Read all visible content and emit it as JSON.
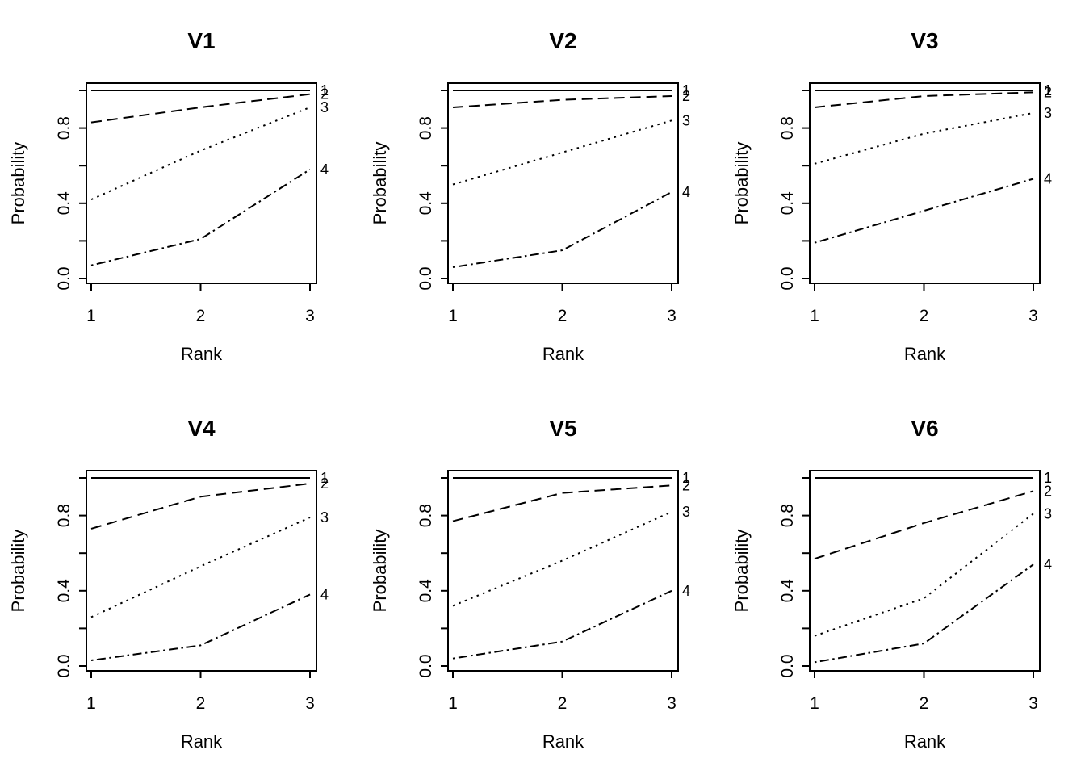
{
  "figure": {
    "background": "#ffffff",
    "ink_color": "#000000",
    "grid": {
      "rows": 2,
      "cols": 3
    }
  },
  "chart_data": [
    {
      "type": "line",
      "title": "V1",
      "xlabel": "Rank",
      "ylabel": "Probability",
      "xlim": [
        0.92,
        3.08
      ],
      "ylim": [
        -0.04,
        1.04
      ],
      "x": [
        1,
        2,
        3
      ],
      "x_ticks": [
        {
          "value": 1,
          "label": "1"
        },
        {
          "value": 2,
          "label": "2"
        },
        {
          "value": 3,
          "label": "3"
        }
      ],
      "y_tick_values": [
        0.0,
        0.2,
        0.4,
        0.6,
        0.8,
        1.0
      ],
      "y_labeled_ticks": [
        {
          "value": 0.0,
          "label": "0.0"
        },
        {
          "value": 0.4,
          "label": "0.4"
        },
        {
          "value": 0.8,
          "label": "0.8"
        }
      ],
      "grid_lines": false,
      "legend": "end-of-line numeric labels",
      "series": [
        {
          "name": "1",
          "linetype": "solid",
          "values": [
            1.0,
            1.0,
            1.0
          ]
        },
        {
          "name": "2",
          "linetype": "dashed",
          "values": [
            0.83,
            0.91,
            0.98
          ]
        },
        {
          "name": "3",
          "linetype": "dotted",
          "values": [
            0.42,
            0.68,
            0.91
          ]
        },
        {
          "name": "4",
          "linetype": "dashdot",
          "values": [
            0.07,
            0.21,
            0.58
          ]
        }
      ]
    },
    {
      "type": "line",
      "title": "V2",
      "xlabel": "Rank",
      "ylabel": "Probability",
      "xlim": [
        0.92,
        3.08
      ],
      "ylim": [
        -0.04,
        1.04
      ],
      "x": [
        1,
        2,
        3
      ],
      "x_ticks": [
        {
          "value": 1,
          "label": "1"
        },
        {
          "value": 2,
          "label": "2"
        },
        {
          "value": 3,
          "label": "3"
        }
      ],
      "y_tick_values": [
        0.0,
        0.2,
        0.4,
        0.6,
        0.8,
        1.0
      ],
      "y_labeled_ticks": [
        {
          "value": 0.0,
          "label": "0.0"
        },
        {
          "value": 0.4,
          "label": "0.4"
        },
        {
          "value": 0.8,
          "label": "0.8"
        }
      ],
      "grid_lines": false,
      "legend": "end-of-line numeric labels",
      "series": [
        {
          "name": "1",
          "linetype": "solid",
          "values": [
            1.0,
            1.0,
            1.0
          ]
        },
        {
          "name": "2",
          "linetype": "dashed",
          "values": [
            0.91,
            0.95,
            0.97
          ]
        },
        {
          "name": "3",
          "linetype": "dotted",
          "values": [
            0.5,
            0.67,
            0.84
          ]
        },
        {
          "name": "4",
          "linetype": "dashdot",
          "values": [
            0.06,
            0.15,
            0.46
          ]
        }
      ]
    },
    {
      "type": "line",
      "title": "V3",
      "xlabel": "Rank",
      "ylabel": "Probability",
      "xlim": [
        0.92,
        3.08
      ],
      "ylim": [
        -0.04,
        1.04
      ],
      "x": [
        1,
        2,
        3
      ],
      "x_ticks": [
        {
          "value": 1,
          "label": "1"
        },
        {
          "value": 2,
          "label": "2"
        },
        {
          "value": 3,
          "label": "3"
        }
      ],
      "y_tick_values": [
        0.0,
        0.2,
        0.4,
        0.6,
        0.8,
        1.0
      ],
      "y_labeled_ticks": [
        {
          "value": 0.0,
          "label": "0.0"
        },
        {
          "value": 0.4,
          "label": "0.4"
        },
        {
          "value": 0.8,
          "label": "0.8"
        }
      ],
      "grid_lines": false,
      "legend": "end-of-line numeric labels",
      "series": [
        {
          "name": "1",
          "linetype": "solid",
          "values": [
            1.0,
            1.0,
            1.0
          ]
        },
        {
          "name": "2",
          "linetype": "dashed",
          "values": [
            0.91,
            0.97,
            0.99
          ]
        },
        {
          "name": "3",
          "linetype": "dotted",
          "values": [
            0.61,
            0.77,
            0.88
          ]
        },
        {
          "name": "4",
          "linetype": "dashdot",
          "values": [
            0.19,
            0.36,
            0.53
          ]
        }
      ]
    },
    {
      "type": "line",
      "title": "V4",
      "xlabel": "Rank",
      "ylabel": "Probability",
      "xlim": [
        0.92,
        3.08
      ],
      "ylim": [
        -0.04,
        1.04
      ],
      "x": [
        1,
        2,
        3
      ],
      "x_ticks": [
        {
          "value": 1,
          "label": "1"
        },
        {
          "value": 2,
          "label": "2"
        },
        {
          "value": 3,
          "label": "3"
        }
      ],
      "y_tick_values": [
        0.0,
        0.2,
        0.4,
        0.6,
        0.8,
        1.0
      ],
      "y_labeled_ticks": [
        {
          "value": 0.0,
          "label": "0.0"
        },
        {
          "value": 0.4,
          "label": "0.4"
        },
        {
          "value": 0.8,
          "label": "0.8"
        }
      ],
      "grid_lines": false,
      "legend": "end-of-line numeric labels",
      "series": [
        {
          "name": "1",
          "linetype": "solid",
          "values": [
            1.0,
            1.0,
            1.0
          ]
        },
        {
          "name": "2",
          "linetype": "dashed",
          "values": [
            0.73,
            0.9,
            0.97
          ]
        },
        {
          "name": "3",
          "linetype": "dotted",
          "values": [
            0.26,
            0.53,
            0.79
          ]
        },
        {
          "name": "4",
          "linetype": "dashdot",
          "values": [
            0.03,
            0.11,
            0.38
          ]
        }
      ]
    },
    {
      "type": "line",
      "title": "V5",
      "xlabel": "Rank",
      "ylabel": "Probability",
      "xlim": [
        0.92,
        3.08
      ],
      "ylim": [
        -0.04,
        1.04
      ],
      "x": [
        1,
        2,
        3
      ],
      "x_ticks": [
        {
          "value": 1,
          "label": "1"
        },
        {
          "value": 2,
          "label": "2"
        },
        {
          "value": 3,
          "label": "3"
        }
      ],
      "y_tick_values": [
        0.0,
        0.2,
        0.4,
        0.6,
        0.8,
        1.0
      ],
      "y_labeled_ticks": [
        {
          "value": 0.0,
          "label": "0.0"
        },
        {
          "value": 0.4,
          "label": "0.4"
        },
        {
          "value": 0.8,
          "label": "0.8"
        }
      ],
      "grid_lines": false,
      "legend": "end-of-line numeric labels",
      "series": [
        {
          "name": "1",
          "linetype": "solid",
          "values": [
            1.0,
            1.0,
            1.0
          ]
        },
        {
          "name": "2",
          "linetype": "dashed",
          "values": [
            0.77,
            0.92,
            0.96
          ]
        },
        {
          "name": "3",
          "linetype": "dotted",
          "values": [
            0.32,
            0.56,
            0.82
          ]
        },
        {
          "name": "4",
          "linetype": "dashdot",
          "values": [
            0.04,
            0.13,
            0.4
          ]
        }
      ]
    },
    {
      "type": "line",
      "title": "V6",
      "xlabel": "Rank",
      "ylabel": "Probability",
      "xlim": [
        0.92,
        3.08
      ],
      "ylim": [
        -0.04,
        1.04
      ],
      "x": [
        1,
        2,
        3
      ],
      "x_ticks": [
        {
          "value": 1,
          "label": "1"
        },
        {
          "value": 2,
          "label": "2"
        },
        {
          "value": 3,
          "label": "3"
        }
      ],
      "y_tick_values": [
        0.0,
        0.2,
        0.4,
        0.6,
        0.8,
        1.0
      ],
      "y_labeled_ticks": [
        {
          "value": 0.0,
          "label": "0.0"
        },
        {
          "value": 0.4,
          "label": "0.4"
        },
        {
          "value": 0.8,
          "label": "0.8"
        }
      ],
      "grid_lines": false,
      "legend": "end-of-line numeric labels",
      "series": [
        {
          "name": "1",
          "linetype": "solid",
          "values": [
            1.0,
            1.0,
            1.0
          ]
        },
        {
          "name": "2",
          "linetype": "dashed",
          "values": [
            0.57,
            0.76,
            0.93
          ]
        },
        {
          "name": "3",
          "linetype": "dotted",
          "values": [
            0.16,
            0.36,
            0.81
          ]
        },
        {
          "name": "4",
          "linetype": "dashdot",
          "values": [
            0.02,
            0.12,
            0.54
          ]
        }
      ]
    }
  ]
}
